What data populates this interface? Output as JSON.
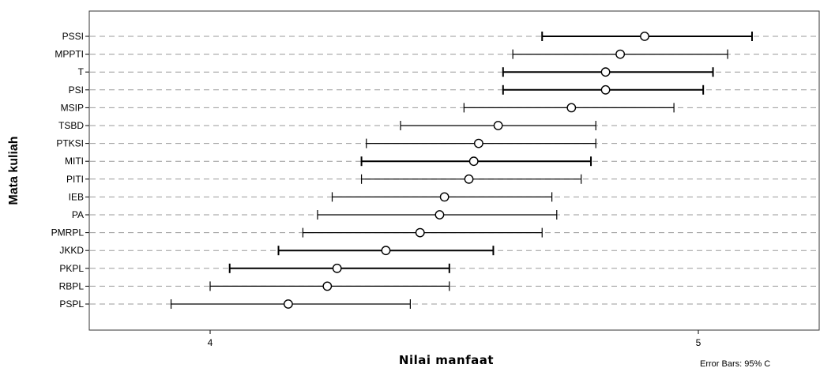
{
  "chart_data": {
    "type": "errorbar",
    "ylabel": "Mata kuliah",
    "xlabel": "Nilai manfaat",
    "footnote": "Error Bars: 95% C",
    "x_ticks": [
      4,
      5
    ],
    "x_tick_labels": [
      "4",
      "5"
    ],
    "xlim": [
      3.75,
      5.2
    ],
    "grid": "horizontal-dashed",
    "categories": [
      "PSSI",
      "MPPTI",
      "T",
      "PSI",
      "MSIP",
      "TSBD",
      "PTKSI",
      "MITI",
      "PITI",
      "IEB",
      "PA",
      "PMRPL",
      "JKKD",
      "PKPL",
      "RBPL",
      "PSPL"
    ],
    "means": [
      4.89,
      4.84,
      4.81,
      4.81,
      4.74,
      4.59,
      4.55,
      4.54,
      4.53,
      4.48,
      4.47,
      4.43,
      4.36,
      4.26,
      4.24,
      4.16
    ],
    "lower": [
      4.68,
      4.62,
      4.6,
      4.6,
      4.52,
      4.39,
      4.32,
      4.31,
      4.31,
      4.25,
      4.22,
      4.19,
      4.14,
      4.04,
      4.0,
      3.92
    ],
    "upper": [
      5.11,
      5.06,
      5.03,
      5.01,
      4.95,
      4.79,
      4.79,
      4.78,
      4.76,
      4.7,
      4.71,
      4.68,
      4.58,
      4.49,
      4.49,
      4.41
    ],
    "cap_style": [
      "bold",
      "thin",
      "bold",
      "bold",
      "thin",
      "thin",
      "thin",
      "bold",
      "thin",
      "thin",
      "thin",
      "thin",
      "bold",
      "bold",
      "thin",
      "thin"
    ],
    "colors": {
      "line": "#000000",
      "grid": "#9a9a9a",
      "frame": "#333333"
    }
  }
}
